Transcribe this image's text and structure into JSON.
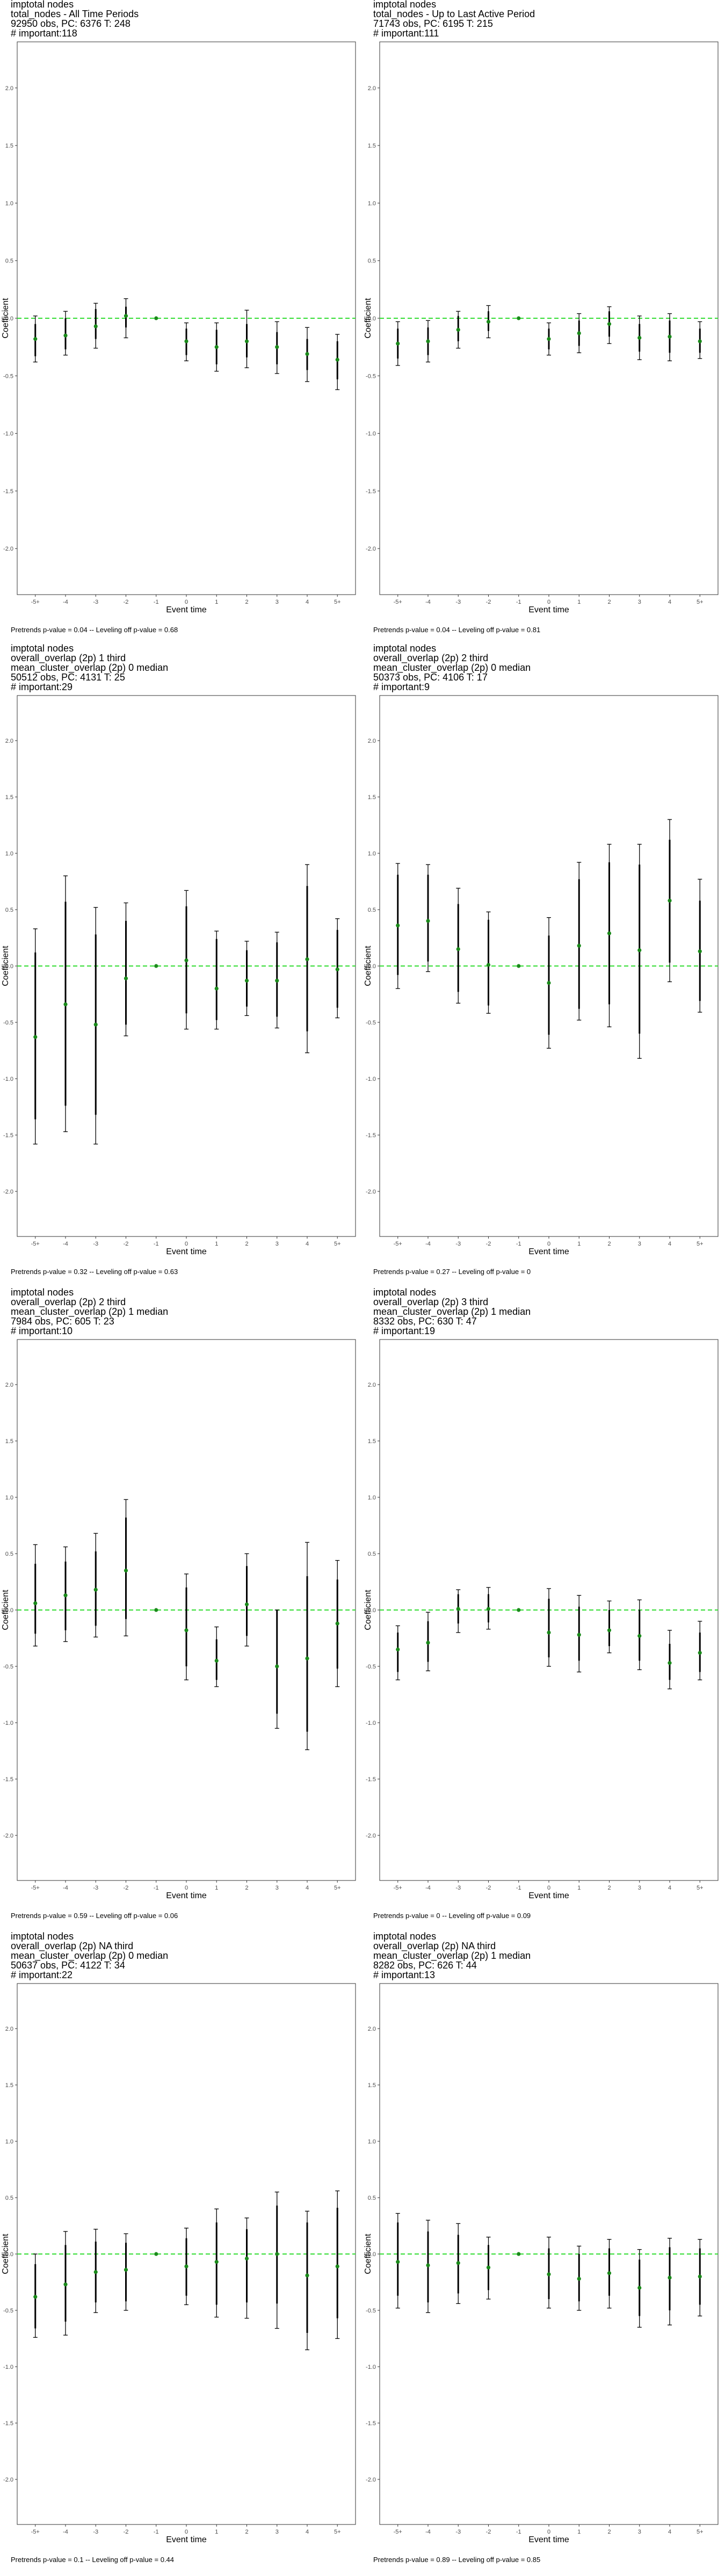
{
  "chart_data": [
    {
      "type": "scatter",
      "title": [
        " imptotal nodes",
        "total_nodes - All Time Periods",
        "92950 obs, PC: 6376 T: 248",
        "# important:118"
      ],
      "xlabel": "Event time",
      "ylabel": "Coefficient",
      "categories": [
        "-5+",
        "-4",
        "-3",
        "-2",
        "-1",
        "0",
        "1",
        "2",
        "3",
        "4",
        "5+"
      ],
      "ylim": [
        -2.4,
        2.4
      ],
      "yticks": [
        "2.0",
        "1.5",
        "1.0",
        "0.5",
        "0.0",
        "-0.5",
        "-1.0",
        "-1.5",
        "-2.0"
      ],
      "estimates": [
        -0.18,
        -0.15,
        -0.07,
        0.02,
        0.0,
        -0.2,
        -0.25,
        -0.2,
        -0.25,
        -0.31,
        -0.36
      ],
      "ci95": [
        [
          -0.38,
          0.02
        ],
        [
          -0.32,
          0.06
        ],
        [
          -0.26,
          0.13
        ],
        [
          -0.17,
          0.17
        ],
        null,
        [
          -0.37,
          -0.04
        ],
        [
          -0.46,
          -0.04
        ],
        [
          -0.43,
          0.07
        ],
        [
          -0.48,
          -0.03
        ],
        [
          -0.55,
          -0.08
        ],
        [
          -0.62,
          -0.14
        ]
      ],
      "ci_inner": [
        [
          -0.33,
          -0.05
        ],
        [
          -0.27,
          0.0
        ],
        [
          -0.18,
          0.08
        ],
        [
          -0.08,
          0.1
        ],
        null,
        [
          -0.32,
          -0.09
        ],
        [
          -0.4,
          -0.1
        ],
        [
          -0.34,
          -0.05
        ],
        [
          -0.4,
          -0.12
        ],
        [
          -0.45,
          -0.18
        ],
        [
          -0.53,
          -0.2
        ]
      ],
      "footnote": "Pretrends p-value = 0.04 -- Leveling off p-value = 0.68"
    },
    {
      "type": "scatter",
      "title": [
        " imptotal nodes",
        "total_nodes - Up to Last Active Period",
        "71743 obs, PC: 6195 T: 215",
        "# important:111"
      ],
      "xlabel": "Event time",
      "ylabel": "Coefficient",
      "categories": [
        "-5+",
        "-4",
        "-3",
        "-2",
        "-1",
        "0",
        "1",
        "2",
        "3",
        "4",
        "5+"
      ],
      "ylim": [
        -2.4,
        2.4
      ],
      "yticks": [
        "2.0",
        "1.5",
        "1.0",
        "0.5",
        "0.0",
        "-0.5",
        "-1.0",
        "-1.5",
        "-2.0"
      ],
      "estimates": [
        -0.22,
        -0.2,
        -0.1,
        -0.03,
        0.0,
        -0.18,
        -0.13,
        -0.05,
        -0.17,
        -0.16,
        -0.2
      ],
      "ci95": [
        [
          -0.41,
          -0.03
        ],
        [
          -0.38,
          -0.02
        ],
        [
          -0.26,
          0.06
        ],
        [
          -0.17,
          0.11
        ],
        null,
        [
          -0.32,
          -0.04
        ],
        [
          -0.3,
          0.04
        ],
        [
          -0.22,
          0.1
        ],
        [
          -0.36,
          0.02
        ],
        [
          -0.37,
          0.04
        ],
        [
          -0.35,
          -0.03
        ]
      ],
      "ci_inner": [
        [
          -0.35,
          -0.09
        ],
        [
          -0.32,
          -0.08
        ],
        [
          -0.2,
          0.02
        ],
        [
          -0.11,
          0.06
        ],
        null,
        [
          -0.27,
          -0.09
        ],
        [
          -0.24,
          -0.02
        ],
        [
          -0.16,
          0.06
        ],
        [
          -0.29,
          -0.05
        ],
        [
          -0.3,
          -0.02
        ],
        [
          -0.3,
          -0.09
        ]
      ],
      "footnote": "Pretrends p-value = 0.04 -- Leveling off p-value = 0.81"
    },
    {
      "type": "scatter",
      "title": [
        " imptotal nodes",
        "overall_overlap (2p) 1 third",
        "mean_cluster_overlap (2p) 0 median",
        "50512 obs, PC: 4131 T: 25",
        "# important:29"
      ],
      "xlabel": "Event time",
      "ylabel": "Coefficient",
      "categories": [
        "-5+",
        "-4",
        "-3",
        "-2",
        "-1",
        "0",
        "1",
        "2",
        "3",
        "4",
        "5+"
      ],
      "ylim": [
        -2.4,
        2.4
      ],
      "yticks": [
        "2.0",
        "1.5",
        "1.0",
        "0.5",
        "0.0",
        "-0.5",
        "-1.0",
        "-1.5",
        "-2.0"
      ],
      "estimates": [
        -0.63,
        -0.34,
        -0.52,
        -0.11,
        0.0,
        0.05,
        -0.2,
        -0.13,
        -0.13,
        0.06,
        -0.03
      ],
      "ci95": [
        [
          -1.58,
          0.33
        ],
        [
          -1.47,
          0.8
        ],
        [
          -1.58,
          0.52
        ],
        [
          -0.62,
          0.56
        ],
        null,
        [
          -0.56,
          0.67
        ],
        [
          -0.56,
          0.31
        ],
        [
          -0.44,
          0.22
        ],
        [
          -0.55,
          0.3
        ],
        [
          -0.77,
          0.9
        ],
        [
          -0.46,
          0.42
        ]
      ],
      "ci_inner": [
        [
          -1.36,
          0.12
        ],
        [
          -1.24,
          0.57
        ],
        [
          -1.32,
          0.28
        ],
        [
          -0.52,
          0.4
        ],
        null,
        [
          -0.42,
          0.53
        ],
        [
          -0.48,
          0.24
        ],
        [
          -0.36,
          0.14
        ],
        [
          -0.45,
          0.21
        ],
        [
          -0.58,
          0.71
        ],
        [
          -0.37,
          0.32
        ]
      ],
      "footnote": "Pretrends p-value = 0.32 -- Leveling off p-value = 0.63"
    },
    {
      "type": "scatter",
      "title": [
        " imptotal nodes",
        "overall_overlap (2p) 2 third",
        "mean_cluster_overlap (2p) 0 median",
        "50373 obs, PC: 4106 T: 17",
        "# important:9"
      ],
      "xlabel": "Event time",
      "ylabel": "Coefficient",
      "categories": [
        "-5+",
        "-4",
        "-3",
        "-2",
        "-1",
        "0",
        "1",
        "2",
        "3",
        "4",
        "5+"
      ],
      "ylim": [
        -2.4,
        2.4
      ],
      "yticks": [
        "2.0",
        "1.5",
        "1.0",
        "0.5",
        "0.0",
        "-0.5",
        "-1.0",
        "-1.5",
        "-2.0"
      ],
      "estimates": [
        0.36,
        0.4,
        0.15,
        0.01,
        0.0,
        -0.15,
        0.18,
        0.29,
        0.14,
        0.58,
        0.13
      ],
      "ci95": [
        [
          -0.2,
          0.91
        ],
        [
          -0.05,
          0.9
        ],
        [
          -0.33,
          0.69
        ],
        [
          -0.42,
          0.48
        ],
        null,
        [
          -0.73,
          0.43
        ],
        [
          -0.48,
          0.92
        ],
        [
          -0.54,
          1.08
        ],
        [
          -0.82,
          1.08
        ],
        [
          -0.14,
          1.3
        ],
        [
          -0.41,
          0.77
        ]
      ],
      "ci_inner": [
        [
          -0.08,
          0.81
        ],
        [
          0.04,
          0.81
        ],
        [
          -0.23,
          0.55
        ],
        [
          -0.35,
          0.41
        ],
        null,
        [
          -0.61,
          0.27
        ],
        [
          -0.38,
          0.77
        ],
        [
          -0.34,
          0.92
        ],
        [
          -0.6,
          0.9
        ],
        [
          0.03,
          1.12
        ],
        [
          -0.31,
          0.58
        ]
      ],
      "footnote": "Pretrends p-value = 0.27 -- Leveling off p-value = 0"
    },
    {
      "type": "scatter",
      "title": [
        " imptotal nodes",
        "overall_overlap (2p) 2 third",
        "mean_cluster_overlap (2p) 1 median",
        "7984 obs, PC: 605 T: 23",
        "# important:10"
      ],
      "xlabel": "Event time",
      "ylabel": "Coefficient",
      "categories": [
        "-5+",
        "-4",
        "-3",
        "-2",
        "-1",
        "0",
        "1",
        "2",
        "3",
        "4",
        "5+"
      ],
      "ylim": [
        -2.4,
        2.4
      ],
      "yticks": [
        "2.0",
        "1.5",
        "1.0",
        "0.5",
        "0.0",
        "-0.5",
        "-1.0",
        "-1.5",
        "-2.0"
      ],
      "estimates": [
        0.06,
        0.13,
        0.18,
        0.35,
        0.0,
        -0.18,
        -0.45,
        0.05,
        -0.5,
        -0.43,
        -0.12
      ],
      "ci95": [
        [
          -0.32,
          0.58
        ],
        [
          -0.28,
          0.56
        ],
        [
          -0.24,
          0.68
        ],
        [
          -0.23,
          0.98
        ],
        null,
        [
          -0.62,
          0.32
        ],
        [
          -0.68,
          -0.15
        ],
        [
          -0.32,
          0.5
        ],
        [
          -1.05,
          0.0
        ],
        [
          -1.24,
          0.6
        ],
        [
          -0.68,
          0.44
        ]
      ],
      "ci_inner": [
        [
          -0.21,
          0.41
        ],
        [
          -0.18,
          0.43
        ],
        [
          -0.14,
          0.52
        ],
        [
          -0.08,
          0.82
        ],
        null,
        [
          -0.5,
          0.2
        ],
        [
          -0.62,
          -0.26
        ],
        [
          -0.23,
          0.39
        ],
        [
          -0.92,
          0.0
        ],
        [
          -1.08,
          0.3
        ],
        [
          -0.52,
          0.27
        ]
      ],
      "footnote": "Pretrends p-value = 0.59 -- Leveling off p-value = 0.06"
    },
    {
      "type": "scatter",
      "title": [
        " imptotal nodes",
        "overall_overlap (2p) 3 third",
        "mean_cluster_overlap (2p) 1 median",
        "8332 obs, PC: 630 T: 47",
        "# important:19"
      ],
      "xlabel": "Event time",
      "ylabel": "Coefficient",
      "categories": [
        "-5+",
        "-4",
        "-3",
        "-2",
        "-1",
        "0",
        "1",
        "2",
        "3",
        "4",
        "5+"
      ],
      "ylim": [
        -2.4,
        2.4
      ],
      "yticks": [
        "2.0",
        "1.5",
        "1.0",
        "0.5",
        "0.0",
        "-0.5",
        "-1.0",
        "-1.5",
        "-2.0"
      ],
      "estimates": [
        -0.35,
        -0.29,
        0.01,
        0.01,
        0.0,
        -0.2,
        -0.22,
        -0.18,
        -0.23,
        -0.47,
        -0.38
      ],
      "ci95": [
        [
          -0.62,
          -0.14
        ],
        [
          -0.54,
          -0.02
        ],
        [
          -0.2,
          0.18
        ],
        [
          -0.17,
          0.2
        ],
        null,
        [
          -0.5,
          0.19
        ],
        [
          -0.55,
          0.13
        ],
        [
          -0.38,
          0.08
        ],
        [
          -0.53,
          0.09
        ],
        [
          -0.7,
          -0.18
        ],
        [
          -0.62,
          -0.1
        ]
      ],
      "ci_inner": [
        [
          -0.55,
          -0.2
        ],
        [
          -0.46,
          -0.1
        ],
        [
          -0.12,
          0.14
        ],
        [
          -0.11,
          0.14
        ],
        null,
        [
          -0.42,
          0.1
        ],
        [
          -0.45,
          0.03
        ],
        [
          -0.32,
          0.0
        ],
        [
          -0.45,
          0.0
        ],
        [
          -0.62,
          -0.3
        ],
        [
          -0.55,
          -0.2
        ]
      ],
      "footnote": "Pretrends p-value = 0 -- Leveling off p-value = 0.09"
    },
    {
      "type": "scatter",
      "title": [
        " imptotal nodes",
        "overall_overlap (2p) NA third",
        "mean_cluster_overlap (2p) 0 median",
        "50637 obs, PC: 4122 T: 34",
        "# important:22"
      ],
      "xlabel": "Event time",
      "ylabel": "Coefficient",
      "categories": [
        "-5+",
        "-4",
        "-3",
        "-2",
        "-1",
        "0",
        "1",
        "2",
        "3",
        "4",
        "5+"
      ],
      "ylim": [
        -2.4,
        2.4
      ],
      "yticks": [
        "2.0",
        "1.5",
        "1.0",
        "0.5",
        "0.0",
        "-0.5",
        "-1.0",
        "-1.5",
        "-2.0"
      ],
      "estimates": [
        -0.38,
        -0.27,
        -0.16,
        -0.14,
        0.0,
        -0.11,
        -0.07,
        -0.04,
        0.0,
        -0.19,
        -0.11
      ],
      "ci95": [
        [
          -0.74,
          0.0
        ],
        [
          -0.72,
          0.2
        ],
        [
          -0.52,
          0.22
        ],
        [
          -0.5,
          0.18
        ],
        null,
        [
          -0.45,
          0.23
        ],
        [
          -0.56,
          0.4
        ],
        [
          -0.57,
          0.32
        ],
        [
          -0.66,
          0.55
        ],
        [
          -0.85,
          0.38
        ],
        [
          -0.75,
          0.56
        ]
      ],
      "ci_inner": [
        [
          -0.66,
          -0.09
        ],
        [
          -0.6,
          0.08
        ],
        [
          -0.43,
          0.11
        ],
        [
          -0.42,
          0.1
        ],
        null,
        [
          -0.37,
          0.14
        ],
        [
          -0.45,
          0.28
        ],
        [
          -0.43,
          0.22
        ],
        [
          -0.44,
          0.43
        ],
        [
          -0.7,
          0.28
        ],
        [
          -0.57,
          0.41
        ]
      ],
      "footnote": "Pretrends p-value = 0.1 -- Leveling off p-value = 0.44"
    },
    {
      "type": "scatter",
      "title": [
        " imptotal nodes",
        "overall_overlap (2p) NA third",
        "mean_cluster_overlap (2p) 1 median",
        "8282 obs, PC: 626 T: 44",
        "# important:13"
      ],
      "xlabel": "Event time",
      "ylabel": "Coefficient",
      "categories": [
        "-5+",
        "-4",
        "-3",
        "-2",
        "-1",
        "0",
        "1",
        "2",
        "3",
        "4",
        "5+"
      ],
      "ylim": [
        -2.4,
        2.4
      ],
      "yticks": [
        "2.0",
        "1.5",
        "1.0",
        "0.5",
        "0.0",
        "-0.5",
        "-1.0",
        "-1.5",
        "-2.0"
      ],
      "estimates": [
        -0.07,
        -0.1,
        -0.08,
        -0.12,
        0.0,
        -0.18,
        -0.22,
        -0.17,
        -0.3,
        -0.21,
        -0.2
      ],
      "ci95": [
        [
          -0.48,
          0.36
        ],
        [
          -0.52,
          0.3
        ],
        [
          -0.44,
          0.27
        ],
        [
          -0.4,
          0.15
        ],
        null,
        [
          -0.48,
          0.15
        ],
        [
          -0.5,
          0.07
        ],
        [
          -0.48,
          0.13
        ],
        [
          -0.65,
          0.04
        ],
        [
          -0.63,
          0.14
        ],
        [
          -0.55,
          0.13
        ]
      ],
      "ci_inner": [
        [
          -0.37,
          0.28
        ],
        [
          -0.43,
          0.2
        ],
        [
          -0.35,
          0.17
        ],
        [
          -0.32,
          0.08
        ],
        null,
        [
          -0.4,
          0.05
        ],
        [
          -0.42,
          0.0
        ],
        [
          -0.37,
          0.05
        ],
        [
          -0.55,
          -0.05
        ],
        [
          -0.5,
          0.06
        ],
        [
          -0.45,
          0.05
        ]
      ],
      "footnote": "Pretrends p-value = 0.89 -- Leveling off p-value = 0.85"
    }
  ],
  "colors": {
    "point": "#1a8a1a",
    "zero_line": "#33dd33",
    "error_bar": "#000000",
    "frame": "#333333",
    "tick_text": "#4d4d4d"
  }
}
